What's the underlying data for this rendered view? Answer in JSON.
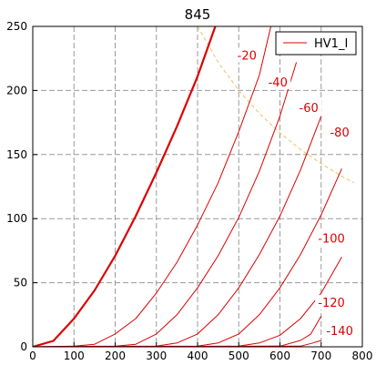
{
  "chart_data": {
    "type": "line",
    "title": "845",
    "xlabel": "",
    "ylabel": "",
    "xlim": [
      0,
      800
    ],
    "ylim": [
      0,
      250
    ],
    "x_ticks": [
      "0",
      "100",
      "200",
      "300",
      "400",
      "500",
      "600",
      "700",
      "800"
    ],
    "y_ticks": [
      "0",
      "50",
      "100",
      "150",
      "200",
      "250"
    ],
    "grid": true,
    "legend": {
      "placement": "top-right",
      "entries": [
        "HV1_I"
      ]
    },
    "colors": {
      "curves": "#dd0000",
      "dissipation": "#f0c060",
      "grid": "#999999"
    },
    "series": [
      {
        "label": "",
        "bold": true,
        "x": [
          0,
          50,
          100,
          150,
          200,
          250,
          300,
          350,
          400,
          443
        ],
        "y": [
          0,
          4.6,
          22,
          44,
          71,
          102,
          136,
          172,
          211,
          250
        ]
      },
      {
        "label": "-20",
        "x": [
          0,
          100,
          150,
          200,
          250,
          300,
          350,
          400,
          450,
          500,
          550,
          578
        ],
        "y": [
          0,
          0.5,
          2,
          10,
          22,
          42,
          66,
          95,
          128,
          168,
          212,
          250
        ]
      },
      {
        "label": "-40",
        "x": [
          0,
          200,
          250,
          300,
          350,
          400,
          450,
          500,
          550,
          600,
          640
        ],
        "y": [
          0,
          0.5,
          2,
          10,
          25,
          46,
          71,
          101,
          137,
          180,
          222
        ]
      },
      {
        "label": "-60",
        "x": [
          0,
          300,
          350,
          400,
          450,
          500,
          550,
          600,
          650,
          700
        ],
        "y": [
          0,
          0.5,
          3,
          10,
          25,
          46,
          72,
          102,
          138,
          180
        ]
      },
      {
        "label": "-80",
        "x": [
          0,
          400,
          450,
          500,
          550,
          600,
          650,
          700,
          750
        ],
        "y": [
          0,
          0.5,
          3,
          10,
          25,
          46,
          72,
          103,
          139
        ]
      },
      {
        "label": "-100",
        "x": [
          0,
          500,
          550,
          600,
          650,
          700,
          750
        ],
        "y": [
          0,
          0.5,
          3,
          9,
          22,
          42,
          70
        ]
      },
      {
        "label": "-120",
        "x": [
          0,
          600,
          650,
          675,
          700
        ],
        "y": [
          0,
          0.5,
          5,
          10,
          24
        ]
      },
      {
        "label": "-140",
        "x": [
          0,
          650,
          680,
          700
        ],
        "y": [
          0,
          0.5,
          3,
          5
        ]
      }
    ],
    "dissipation": {
      "x": [
        400,
        450,
        500,
        550,
        600,
        650,
        700,
        750,
        780
      ],
      "y": [
        250,
        222,
        200,
        182,
        167,
        154,
        143,
        133,
        128
      ]
    },
    "curve_labels": [
      {
        "text": "-20",
        "x": 520,
        "y": 227
      },
      {
        "text": "-40",
        "x": 595,
        "y": 206
      },
      {
        "text": "-60",
        "x": 670,
        "y": 186
      },
      {
        "text": "-80",
        "x": 745,
        "y": 167
      },
      {
        "text": "-100",
        "x": 725,
        "y": 84
      },
      {
        "text": "-120",
        "x": 725,
        "y": 34
      },
      {
        "text": "-140",
        "x": 745,
        "y": 12
      }
    ]
  }
}
